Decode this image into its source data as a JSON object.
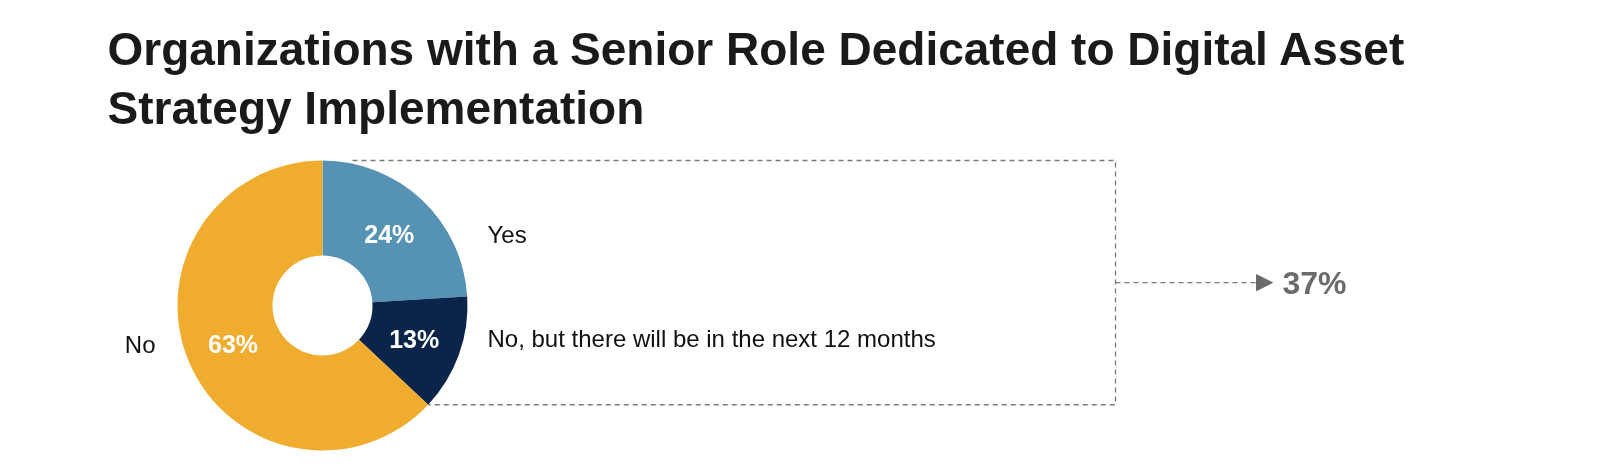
{
  "chart_data": {
    "type": "donut",
    "title": "Organizations with a Senior Role Dedicated to Digital Asset Strategy Implementation",
    "categories": [
      "Yes",
      "No, but there will be in the next 12 months",
      "No"
    ],
    "values": [
      24,
      13,
      63
    ],
    "colors": [
      "#5592b4",
      "#0a2549",
      "#f0ac2e"
    ],
    "value_labels": [
      "24%",
      "13%",
      "63%"
    ],
    "annotations": [
      "37%"
    ]
  }
}
